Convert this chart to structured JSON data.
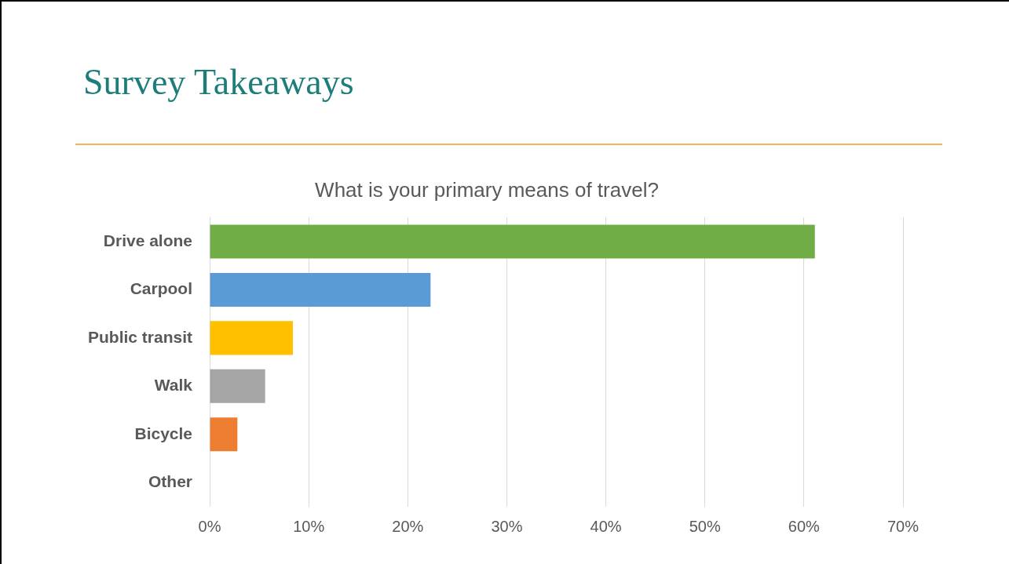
{
  "chart_data": {
    "type": "bar",
    "orientation": "horizontal",
    "title": "Survey Takeaways",
    "subtitle": "What is your primary means of travel?",
    "categories": [
      "Drive alone",
      "Carpool",
      "Public transit",
      "Walk",
      "Bicycle",
      "Other"
    ],
    "values": [
      61.1,
      22.3,
      8.4,
      5.6,
      2.8,
      0
    ],
    "colors": [
      "#70ad47",
      "#5b9bd5",
      "#ffc000",
      "#a5a5a5",
      "#ed7d31",
      "#7f7f7f"
    ],
    "xlim": [
      0,
      70
    ],
    "xticks": [
      {
        "value": 0,
        "label": "0%"
      },
      {
        "value": 10,
        "label": "10%"
      },
      {
        "value": 20,
        "label": "20%"
      },
      {
        "value": 30,
        "label": "30%"
      },
      {
        "value": 40,
        "label": "40%"
      },
      {
        "value": 50,
        "label": "50%"
      },
      {
        "value": 60,
        "label": "60%"
      },
      {
        "value": 70,
        "label": "70%"
      }
    ],
    "grid": "x"
  }
}
